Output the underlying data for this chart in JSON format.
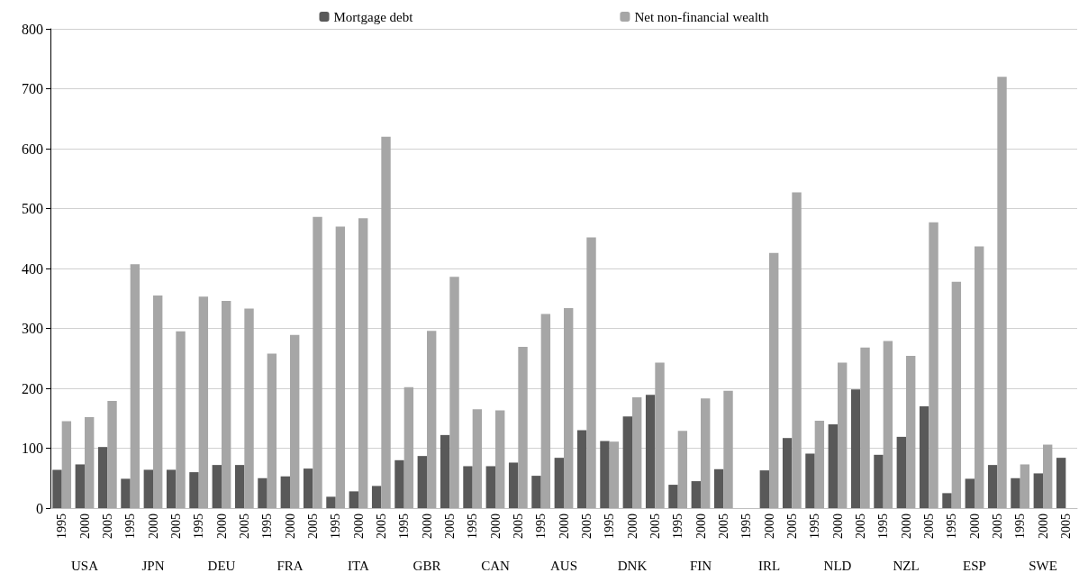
{
  "chart_data": {
    "type": "bar",
    "categories": [
      "1995",
      "2000",
      "2005",
      "1995",
      "2000",
      "2005",
      "1995",
      "2000",
      "2005",
      "1995",
      "2000",
      "2005",
      "1995",
      "2000",
      "2005",
      "1995",
      "2000",
      "2005",
      "1995",
      "2000",
      "2005",
      "1995",
      "2000",
      "2005",
      "1995",
      "2000",
      "2005",
      "1995",
      "2000",
      "2005",
      "1995",
      "2000",
      "2005",
      "1995",
      "2000",
      "2005",
      "1995",
      "2000",
      "2005",
      "1995",
      "2000",
      "2005",
      "1995",
      "2000",
      "2005"
    ],
    "series": [
      {
        "name": "Mortgage debt",
        "color": "#595959",
        "values": [
          64,
          73,
          102,
          49,
          64,
          64,
          60,
          72,
          72,
          50,
          53,
          66,
          19,
          28,
          37,
          80,
          87,
          122,
          70,
          70,
          76,
          54,
          84,
          130,
          112,
          153,
          189,
          39,
          45,
          65,
          null,
          63,
          117,
          91,
          140,
          198,
          89,
          119,
          170,
          25,
          49,
          72,
          50,
          58,
          84
        ]
      },
      {
        "name": "Net non-financial wealth",
        "color": "#a6a6a6",
        "values": [
          145,
          152,
          179,
          407,
          355,
          295,
          353,
          346,
          333,
          258,
          289,
          486,
          470,
          484,
          620,
          202,
          296,
          386,
          165,
          163,
          269,
          324,
          334,
          452,
          111,
          185,
          243,
          129,
          183,
          196,
          null,
          426,
          527,
          146,
          243,
          268,
          279,
          254,
          477,
          378,
          437,
          720,
          73,
          106,
          null
        ]
      }
    ],
    "annotations": [
      "USA",
      "JPN",
      "DEU",
      "FRA",
      "ITA",
      "GBR",
      "CAN",
      "AUS",
      "DNK",
      "FIN",
      "IRL",
      "NLD",
      "NZL",
      "ESP",
      "SWE"
    ],
    "ylim": [
      0,
      800
    ],
    "yticks": [
      0,
      100,
      200,
      300,
      400,
      500,
      600,
      700,
      800
    ],
    "grid": "y",
    "legend": "top"
  }
}
